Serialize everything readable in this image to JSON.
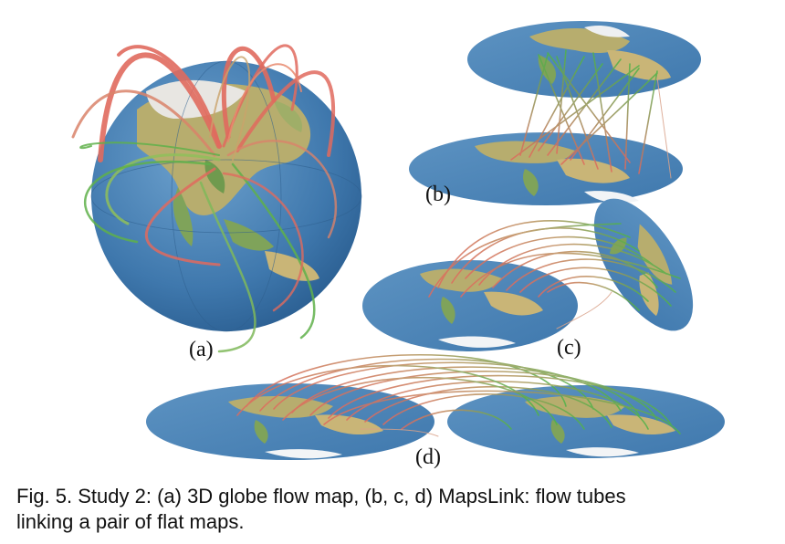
{
  "panels": {
    "a": {
      "label": "(a)"
    },
    "b": {
      "label": "(b)"
    },
    "c": {
      "label": "(c)"
    },
    "d": {
      "label": "(d)"
    }
  },
  "caption": {
    "line1": "Fig. 5. Study 2: (a) 3D globe flow map, (b, c, d) MapsLink: flow tubes",
    "line2": "linking a pair of flat maps."
  },
  "colors": {
    "ocean": "#4f86b8",
    "land": "#b7ad6e",
    "vegetation": "#6f9a4e",
    "ice": "#f2f4f6",
    "flow_origin": "#e06a5e",
    "flow_destination": "#4fb34a"
  }
}
